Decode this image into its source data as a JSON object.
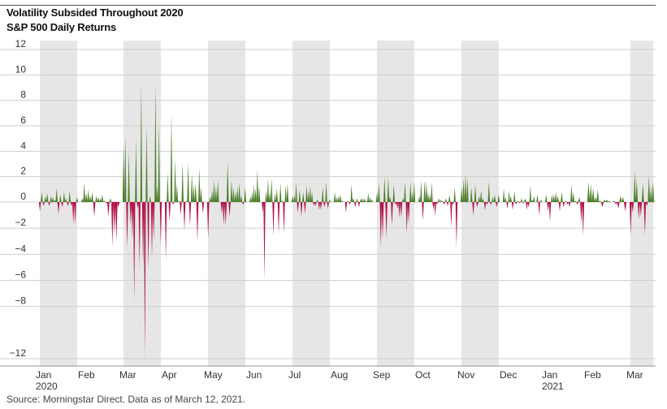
{
  "chart_data": {
    "type": "area",
    "title": "Volatility Subsided Throughout 2020",
    "subtitle": "S&P 500 Daily Returns",
    "source": "Source: Morningstar Direct.  Data as of March 12, 2021.",
    "ylim": [
      -12,
      12
    ],
    "yticks": [
      12,
      10,
      8,
      6,
      4,
      2,
      0,
      -2,
      -4,
      -6,
      -8,
      -12
    ],
    "ytick_labels": [
      "12",
      "10",
      "8",
      "6",
      "4",
      "2",
      "0",
      "−2",
      "−4",
      "−6",
      "−8",
      "−12"
    ],
    "grid": true,
    "months": [
      {
        "label": "Jan",
        "sub": "2020",
        "shaded": true
      },
      {
        "label": "Feb",
        "sub": "",
        "shaded": false
      },
      {
        "label": "Mar",
        "sub": "",
        "shaded": true
      },
      {
        "label": "Apr",
        "sub": "",
        "shaded": false
      },
      {
        "label": "May",
        "sub": "",
        "shaded": true
      },
      {
        "label": "Jun",
        "sub": "",
        "shaded": false
      },
      {
        "label": "Jul",
        "sub": "",
        "shaded": true
      },
      {
        "label": "Aug",
        "sub": "",
        "shaded": false
      },
      {
        "label": "Sep",
        "sub": "",
        "shaded": true
      },
      {
        "label": "Oct",
        "sub": "",
        "shaded": false
      },
      {
        "label": "Nov",
        "sub": "",
        "shaded": true
      },
      {
        "label": "Dec",
        "sub": "",
        "shaded": false
      },
      {
        "label": "Jan",
        "sub": "2021",
        "shaded": false
      },
      {
        "label": "Feb",
        "sub": "",
        "shaded": false
      },
      {
        "label": "Mar",
        "sub": "",
        "shaded": true
      }
    ],
    "colors": {
      "positive": "#4d7f2a",
      "negative": "#b0144a",
      "shade": "#e6e6e6",
      "grid": "#cfcfcf"
    },
    "series": [
      {
        "values": [
          [
            -0.7,
            0.8,
            -0.3,
            0.5,
            0.7,
            -0.3,
            0.5,
            0.4,
            0.2,
            1.1,
            -0.9,
            0.6,
            -0.4,
            0.8,
            0.3,
            -0.3,
            0.9,
            -0.3,
            -1.7,
            -1.7,
            0.4
          ],
          [
            0.3,
            1.5,
            0.7,
            1.0,
            0.5,
            0.8,
            -1.1,
            0.5,
            0.4,
            0.3,
            0.6,
            0.1,
            -0.1,
            -1.1,
            0.3,
            -3.4,
            -2.5,
            -3.0,
            -0.4
          ],
          [
            4.6,
            5.2,
            -3.5,
            4.0,
            -1.7,
            -2.8,
            -7.6,
            4.9,
            -0.5,
            -5.0,
            9.3,
            -4.9,
            -12.0,
            6.0,
            -5.2,
            0.5,
            -4.3,
            -2.9,
            9.4,
            1.2,
            6.2,
            -3.4
          ],
          [
            -4.4,
            2.3,
            -1.5,
            7.0,
            -0.2,
            3.4,
            1.4,
            0.1,
            -1.0,
            3.1,
            -2.2,
            0.1,
            3.1,
            -1.8,
            2.3,
            1.4,
            1.5,
            -3.1,
            2.7,
            1.2,
            -0.9
          ],
          [
            -2.8,
            0.4,
            0.9,
            1.7,
            1.2,
            1.7,
            0.0,
            -0.9,
            -1.8,
            -1.8,
            3.2,
            -1.1,
            1.7,
            1.1,
            0.8,
            1.2,
            1.5,
            0.5,
            -0.2,
            1.2
          ],
          [
            0.4,
            0.8,
            1.4,
            1.1,
            2.6,
            1.2,
            0.0,
            -0.8,
            -5.9,
            0.9,
            1.9,
            0.8,
            1.9,
            -2.6,
            0.7,
            1.1,
            -2.4,
            1.5,
            0.1,
            -2.4,
            1.3,
            1.5
          ],
          [
            0.5,
            0.5,
            1.6,
            -0.8,
            1.0,
            -1.1,
            0.8,
            -0.9,
            1.3,
            0.9,
            1.3,
            0.8,
            -0.3,
            -0.3,
            0.2,
            -0.6,
            -0.6,
            1.2,
            -0.4,
            1.6,
            -0.5,
            0.2
          ],
          [
            0.8,
            0.4,
            0.5,
            0.6,
            0.1,
            0.0,
            -0.8,
            0.1,
            -0.2,
            1.4,
            0.3,
            -0.4,
            0.3,
            -0.4,
            0.3,
            0.3,
            0.3,
            0.1,
            0.7,
            0.4,
            0.2
          ],
          [
            0.8,
            1.5,
            -3.5,
            -2.8,
            2.0,
            -2.8,
            2.0,
            0.5,
            -1.8,
            1.4,
            -0.2,
            -0.5,
            -1.2,
            -1.2,
            0.3,
            1.6,
            -2.4,
            -1.6,
            1.6,
            0.8,
            1.6
          ],
          [
            0.5,
            1.7,
            -1.4,
            1.7,
            1.7,
            0.8,
            0.6,
            1.6,
            -0.6,
            -1.1,
            -0.2,
            0.3,
            0.2,
            0.1,
            -0.2,
            0.3,
            -0.3,
            0.6,
            -1.9,
            -0.2,
            1.2,
            -3.5
          ],
          [
            1.2,
            1.8,
            2.2,
            1.9,
            0.0,
            1.2,
            -1.0,
            1.4,
            -0.4,
            0.5,
            0.9,
            0.3,
            -0.6,
            -0.2,
            1.6,
            -0.2,
            0.4,
            0.6,
            -0.4,
            0.6
          ],
          [
            1.1,
            0.4,
            -0.5,
            0.9,
            0.5,
            -0.6,
            0.9,
            -0.2,
            0.1,
            -0.1,
            0.3,
            -0.1,
            0.3,
            -0.6,
            -0.4,
            1.3,
            0.2,
            0.5,
            0.0,
            0.6,
            -1.0,
            0.2
          ],
          [
            0.6,
            -0.7,
            -1.5,
            0.6,
            0.6,
            0.8,
            0.5,
            -0.7,
            0.8,
            -0.4,
            0.1,
            -0.2,
            -0.4,
            1.4,
            0.8,
            0.1,
            -0.2,
            0.4,
            -1.6,
            -2.6
          ],
          [
            1.6,
            1.4,
            1.1,
            0.4,
            1.0,
            0.1,
            -0.4,
            0.2,
            0.2,
            0.1,
            0.0,
            0.1,
            -0.2,
            -0.5,
            0.5,
            0.4,
            -0.7
          ],
          [
            -2.5,
            -0.8,
            2.4,
            1.8,
            -1.3,
            -1.1,
            1.5,
            -2.5,
            -0.3,
            2.1,
            1.2,
            1.7
          ]
        ]
      }
    ]
  }
}
